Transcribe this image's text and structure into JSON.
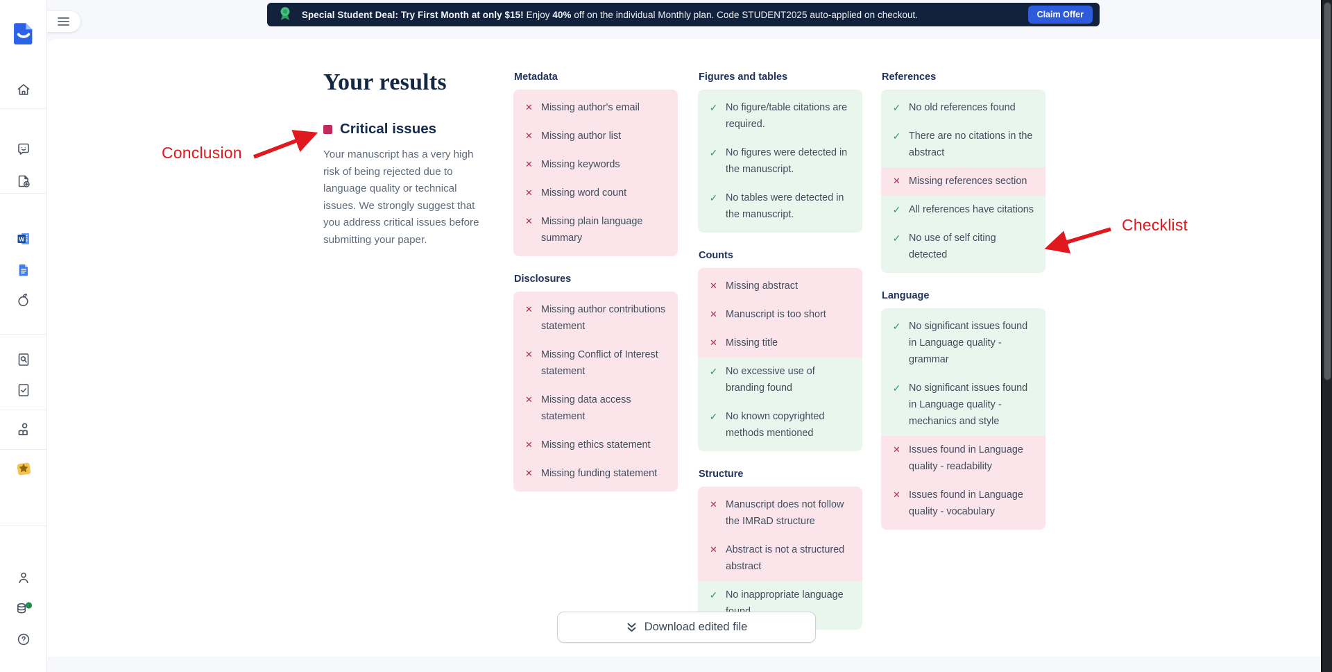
{
  "banner": {
    "ribbon_icon": "award-ribbon-icon",
    "segments": [
      {
        "text": "Special Student Deal: Try First Month at only $15!",
        "bold": true
      },
      {
        "text": " Enjoy ",
        "bold": false
      },
      {
        "text": "40%",
        "bold": true
      },
      {
        "text": " off on the individual Monthly plan. Code STUDENT2025 auto-applied on checkout.",
        "bold": false
      }
    ],
    "claim_button_label": "Claim Offer"
  },
  "sidebar": {
    "icons": [
      {
        "name": "app-logo"
      },
      {
        "name": "home-icon"
      },
      {
        "name": "feedback-chat-icon"
      },
      {
        "name": "new-document-icon"
      },
      {
        "name": "ms-word-icon"
      },
      {
        "name": "google-docs-icon"
      },
      {
        "name": "citrus-icon"
      },
      {
        "name": "document-search-icon"
      },
      {
        "name": "document-check-icon"
      },
      {
        "name": "researcher-icon"
      },
      {
        "name": "premium-star-icon"
      },
      {
        "name": "account-icon"
      },
      {
        "name": "credits-icon"
      },
      {
        "name": "help-icon"
      }
    ]
  },
  "results": {
    "title": "Your results",
    "severity_label": "Critical issues",
    "description": "Your manuscript has a very high risk of being rejected due to language quality or technical issues. We strongly suggest that you address critical issues before submitting your paper."
  },
  "checklist": {
    "columns": [
      {
        "sections": [
          {
            "title": "Metadata",
            "items": [
              {
                "status": "fail",
                "text": "Missing author's email"
              },
              {
                "status": "fail",
                "text": "Missing author list"
              },
              {
                "status": "fail",
                "text": "Missing keywords"
              },
              {
                "status": "fail",
                "text": "Missing word count"
              },
              {
                "status": "fail",
                "text": "Missing plain language summary"
              }
            ]
          },
          {
            "title": "Disclosures",
            "items": [
              {
                "status": "fail",
                "text": "Missing author contributions statement"
              },
              {
                "status": "fail",
                "text": "Missing Conflict of Interest statement"
              },
              {
                "status": "fail",
                "text": "Missing data access statement"
              },
              {
                "status": "fail",
                "text": "Missing ethics statement"
              },
              {
                "status": "fail",
                "text": "Missing funding statement"
              }
            ]
          }
        ]
      },
      {
        "sections": [
          {
            "title": "Figures and tables",
            "items": [
              {
                "status": "pass",
                "text": "No figure/table citations are required."
              },
              {
                "status": "pass",
                "text": "No figures were detected in the manuscript."
              },
              {
                "status": "pass",
                "text": "No tables were detected in the manuscript."
              }
            ]
          },
          {
            "title": "Counts",
            "items": [
              {
                "status": "fail",
                "text": "Missing abstract"
              },
              {
                "status": "fail",
                "text": "Manuscript is too short"
              },
              {
                "status": "fail",
                "text": "Missing title"
              },
              {
                "status": "pass",
                "text": "No excessive use of branding found"
              },
              {
                "status": "pass",
                "text": "No known copyrighted methods mentioned"
              }
            ]
          },
          {
            "title": "Structure",
            "items": [
              {
                "status": "fail",
                "text": "Manuscript does not follow the IMRaD structure"
              },
              {
                "status": "fail",
                "text": "Abstract is not a structured abstract"
              },
              {
                "status": "pass",
                "text": "No inappropriate language found"
              }
            ]
          }
        ]
      },
      {
        "sections": [
          {
            "title": "References",
            "items": [
              {
                "status": "pass",
                "text": "No old references found"
              },
              {
                "status": "pass",
                "text": "There are no citations in the abstract"
              },
              {
                "status": "fail",
                "text": "Missing references section"
              },
              {
                "status": "pass",
                "text": "All references have citations"
              },
              {
                "status": "pass",
                "text": "No use of self citing detected"
              }
            ]
          },
          {
            "title": "Language",
            "items": [
              {
                "status": "pass",
                "text": "No significant issues found in Language quality - grammar"
              },
              {
                "status": "pass",
                "text": "No significant issues found in Language quality - mechanics and style"
              },
              {
                "status": "fail",
                "text": "Issues found in Language quality - readability"
              },
              {
                "status": "fail",
                "text": "Issues found in Language quality - vocabulary"
              }
            ]
          }
        ]
      }
    ]
  },
  "annotations": {
    "conclusion_label": "Conclusion",
    "checklist_label": "Checklist"
  },
  "download": {
    "label": "Download edited file"
  },
  "colors": {
    "banner_bg": "#13223C",
    "claim_button_blue": "#2E5BDB",
    "pass_green": "#2E9F63",
    "pass_bg": "#E8F6EE",
    "fail_crimson": "#B62D58",
    "fail_bg": "#FBE5EB",
    "severity_square": "#C22A5B",
    "annotation_red": "#E0191E",
    "heading_navy": "#132743"
  }
}
